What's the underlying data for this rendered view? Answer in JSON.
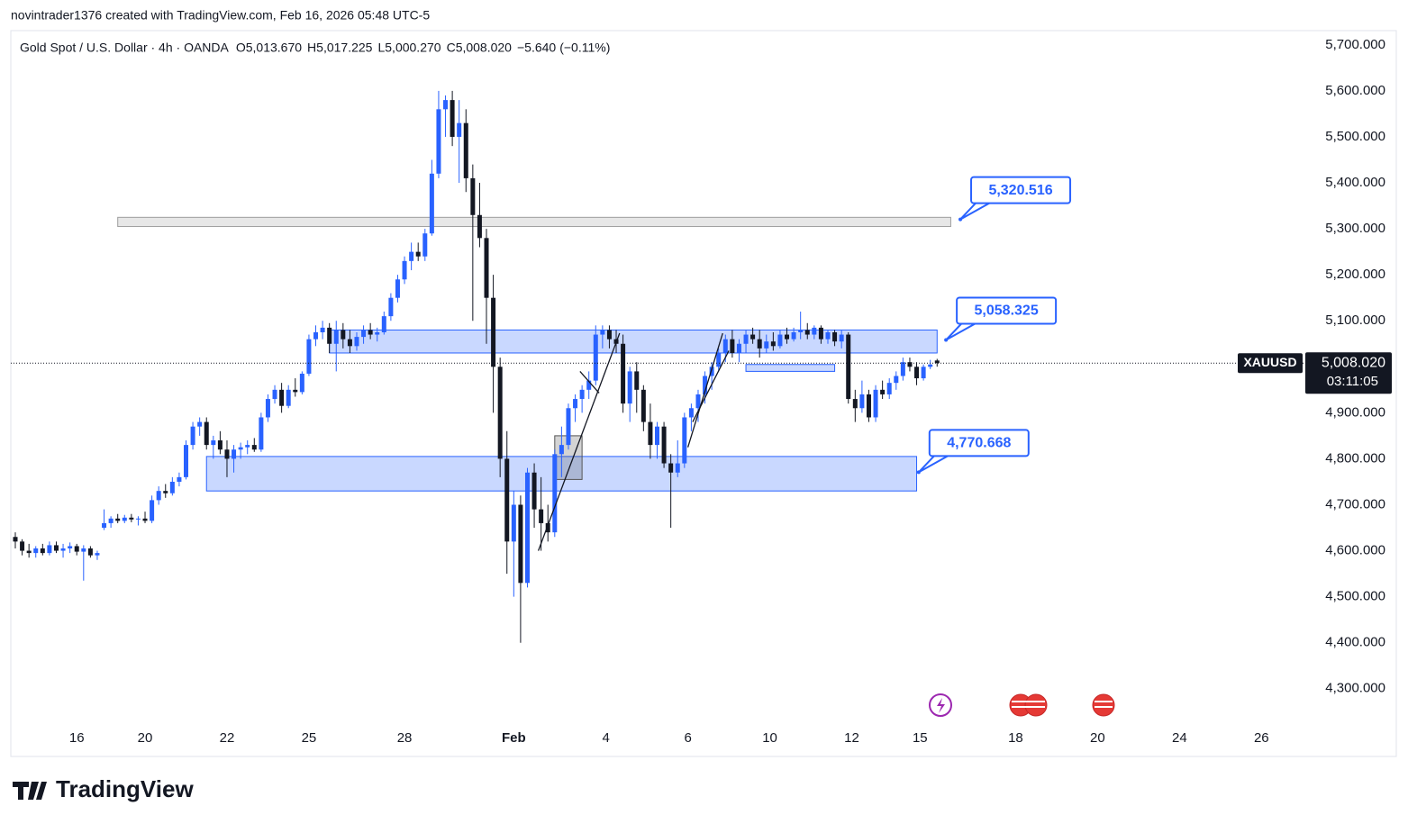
{
  "header": "novintrader1376 created with TradingView.com, Feb 16, 2026 05:48 UTC-5",
  "footer": "TradingView",
  "chart_data": {
    "type": "candlestick",
    "title": "Gold Spot / U.S. Dollar · 4h · OANDA",
    "ohlc": [
      {
        "key": "O",
        "value": 5013.67,
        "label": "5,013.670"
      },
      {
        "key": "H",
        "value": 5017.225,
        "label": "5,017.225"
      },
      {
        "key": "L",
        "value": 5000.27,
        "label": "5,000.270"
      },
      {
        "key": "C",
        "value": 5008.02,
        "label": "5,008.020"
      }
    ],
    "change": {
      "value": -5.64,
      "label": "−5.640"
    },
    "change_pct": {
      "value": -0.11,
      "label": "(−0.11%)"
    },
    "colors": {
      "up": "#2962ff",
      "down": "#131722"
    },
    "xlim": [
      -0.66,
      188
    ],
    "ylim": [
      4231,
      5731
    ],
    "grid": false,
    "xticks": [
      {
        "value": 9,
        "label": "16"
      },
      {
        "value": 19,
        "label": "20"
      },
      {
        "value": 31,
        "label": "22"
      },
      {
        "value": 43,
        "label": "25"
      },
      {
        "value": 57,
        "label": "28"
      },
      {
        "value": 73,
        "label": "Feb"
      },
      {
        "value": 86.5,
        "label": "4"
      },
      {
        "value": 98.5,
        "label": "6"
      },
      {
        "value": 110.5,
        "label": "10"
      },
      {
        "value": 122.5,
        "label": "12"
      },
      {
        "value": 132.5,
        "label": "15"
      },
      {
        "value": 146.5,
        "label": "18"
      },
      {
        "value": 158.5,
        "label": "20"
      },
      {
        "value": 170.5,
        "label": "24"
      },
      {
        "value": 182.5,
        "label": "26"
      }
    ],
    "yticks": [
      {
        "value": 5700,
        "label": "5,700.000"
      },
      {
        "value": 5600,
        "label": "5,600.000"
      },
      {
        "value": 5500,
        "label": "5,500.000"
      },
      {
        "value": 5400,
        "label": "5,400.000"
      },
      {
        "value": 5300,
        "label": "5,300.000"
      },
      {
        "value": 5200,
        "label": "5,200.000"
      },
      {
        "value": 5100,
        "label": "5,100.000"
      },
      {
        "value": 4900,
        "label": "4,900.000"
      },
      {
        "value": 4800,
        "label": "4,800.000"
      },
      {
        "value": 4700,
        "label": "4,700.000"
      },
      {
        "value": 4600,
        "label": "4,600.000"
      },
      {
        "value": 4500,
        "label": "4,500.000"
      },
      {
        "value": 4400,
        "label": "4,400.000"
      },
      {
        "value": 4300,
        "label": "4,300.000"
      }
    ],
    "last_price": {
      "symbol": "XAUUSD",
      "value": 5008.02,
      "label": "5,008.020",
      "countdown": "03:11:05"
    },
    "candles": [
      [
        4630,
        4640,
        4605,
        4620
      ],
      [
        4620,
        4625,
        4590,
        4600
      ],
      [
        4600,
        4615,
        4585,
        4595
      ],
      [
        4595,
        4610,
        4585,
        4605
      ],
      [
        4605,
        4615,
        4590,
        4595
      ],
      [
        4595,
        4620,
        4590,
        4612
      ],
      [
        4612,
        4620,
        4595,
        4600
      ],
      [
        4600,
        4615,
        4585,
        4605
      ],
      [
        4605,
        4618,
        4595,
        4610
      ],
      [
        4610,
        4615,
        4590,
        4598
      ],
      [
        4598,
        4612,
        4535,
        4605
      ],
      [
        4605,
        4610,
        4585,
        4590
      ],
      [
        4590,
        4600,
        4580,
        4595
      ],
      [
        4650,
        4690,
        4645,
        4660
      ],
      [
        4660,
        4675,
        4650,
        4670
      ],
      [
        4670,
        4680,
        4660,
        4665
      ],
      [
        4665,
        4678,
        4660,
        4672
      ],
      [
        4672,
        4680,
        4662,
        4668
      ],
      [
        4668,
        4675,
        4655,
        4670
      ],
      [
        4670,
        4685,
        4660,
        4665
      ],
      [
        4665,
        4720,
        4660,
        4710
      ],
      [
        4710,
        4740,
        4700,
        4730
      ],
      [
        4730,
        4745,
        4715,
        4725
      ],
      [
        4725,
        4760,
        4720,
        4750
      ],
      [
        4750,
        4770,
        4740,
        4760
      ],
      [
        4760,
        4840,
        4755,
        4830
      ],
      [
        4830,
        4880,
        4820,
        4870
      ],
      [
        4870,
        4890,
        4850,
        4880
      ],
      [
        4880,
        4890,
        4820,
        4830
      ],
      [
        4830,
        4850,
        4800,
        4840
      ],
      [
        4840,
        4860,
        4810,
        4820
      ],
      [
        4820,
        4840,
        4760,
        4800
      ],
      [
        4800,
        4830,
        4770,
        4820
      ],
      [
        4820,
        4835,
        4800,
        4825
      ],
      [
        4825,
        4840,
        4810,
        4830
      ],
      [
        4830,
        4845,
        4815,
        4820
      ],
      [
        4820,
        4900,
        4815,
        4890
      ],
      [
        4890,
        4940,
        4880,
        4930
      ],
      [
        4930,
        4960,
        4920,
        4950
      ],
      [
        4950,
        4965,
        4900,
        4915
      ],
      [
        4915,
        4960,
        4910,
        4950
      ],
      [
        4950,
        4975,
        4935,
        4945
      ],
      [
        4945,
        4990,
        4940,
        4985
      ],
      [
        4985,
        5070,
        4980,
        5060
      ],
      [
        5060,
        5090,
        5045,
        5075
      ],
      [
        5075,
        5100,
        5060,
        5085
      ],
      [
        5085,
        5095,
        5030,
        5050
      ],
      [
        5050,
        5100,
        4990,
        5080
      ],
      [
        5080,
        5095,
        5040,
        5060
      ],
      [
        5060,
        5080,
        5030,
        5045
      ],
      [
        5045,
        5075,
        5035,
        5065
      ],
      [
        5065,
        5090,
        5050,
        5080
      ],
      [
        5080,
        5095,
        5060,
        5070
      ],
      [
        5070,
        5085,
        5055,
        5075
      ],
      [
        5075,
        5120,
        5070,
        5110
      ],
      [
        5110,
        5160,
        5100,
        5150
      ],
      [
        5150,
        5200,
        5140,
        5190
      ],
      [
        5190,
        5240,
        5180,
        5230
      ],
      [
        5230,
        5270,
        5210,
        5250
      ],
      [
        5250,
        5270,
        5230,
        5240
      ],
      [
        5240,
        5300,
        5230,
        5290
      ],
      [
        5290,
        5450,
        5285,
        5420
      ],
      [
        5420,
        5600,
        5410,
        5560
      ],
      [
        5560,
        5590,
        5500,
        5580
      ],
      [
        5580,
        5600,
        5480,
        5500
      ],
      [
        5500,
        5580,
        5400,
        5530
      ],
      [
        5530,
        5560,
        5380,
        5410
      ],
      [
        5410,
        5440,
        5100,
        5330
      ],
      [
        5330,
        5400,
        5260,
        5280
      ],
      [
        5280,
        5300,
        5050,
        5150
      ],
      [
        5150,
        5200,
        4900,
        5000
      ],
      [
        5000,
        5020,
        4760,
        4800
      ],
      [
        4800,
        4860,
        4550,
        4620
      ],
      [
        4620,
        4730,
        4500,
        4700
      ],
      [
        4700,
        4720,
        4400,
        4530
      ],
      [
        4530,
        4780,
        4520,
        4770
      ],
      [
        4770,
        4790,
        4650,
        4690
      ],
      [
        4690,
        4760,
        4600,
        4660
      ],
      [
        4660,
        4700,
        4620,
        4640
      ],
      [
        4640,
        4820,
        4630,
        4810
      ],
      [
        4810,
        4870,
        4760,
        4830
      ],
      [
        4830,
        4920,
        4820,
        4910
      ],
      [
        4910,
        4940,
        4880,
        4930
      ],
      [
        4930,
        4960,
        4900,
        4950
      ],
      [
        4950,
        4990,
        4930,
        4970
      ],
      [
        4970,
        5090,
        4960,
        5070
      ],
      [
        5070,
        5090,
        5040,
        5080
      ],
      [
        5080,
        5090,
        5040,
        5060
      ],
      [
        5060,
        5080,
        5030,
        5050
      ],
      [
        5050,
        5070,
        4900,
        4920
      ],
      [
        4920,
        5000,
        4880,
        4990
      ],
      [
        4990,
        5010,
        4900,
        4950
      ],
      [
        4950,
        4960,
        4860,
        4880
      ],
      [
        4880,
        4920,
        4800,
        4830
      ],
      [
        4830,
        4880,
        4800,
        4870
      ],
      [
        4870,
        4880,
        4780,
        4790
      ],
      [
        4790,
        4810,
        4650,
        4770
      ],
      [
        4770,
        4840,
        4760,
        4790
      ],
      [
        4790,
        4900,
        4780,
        4890
      ],
      [
        4890,
        4920,
        4860,
        4910
      ],
      [
        4910,
        4950,
        4880,
        4940
      ],
      [
        4940,
        4990,
        4920,
        4980
      ],
      [
        4980,
        5010,
        4950,
        5000
      ],
      [
        5000,
        5040,
        4990,
        5030
      ],
      [
        5030,
        5070,
        5010,
        5060
      ],
      [
        5060,
        5080,
        5020,
        5030
      ],
      [
        5030,
        5060,
        5010,
        5050
      ],
      [
        5050,
        5080,
        5030,
        5070
      ],
      [
        5070,
        5085,
        5050,
        5060
      ],
      [
        5060,
        5080,
        5020,
        5040
      ],
      [
        5040,
        5070,
        5030,
        5055
      ],
      [
        5055,
        5075,
        5035,
        5045
      ],
      [
        5045,
        5080,
        5040,
        5070
      ],
      [
        5070,
        5085,
        5050,
        5060
      ],
      [
        5060,
        5085,
        5055,
        5075
      ],
      [
        5075,
        5120,
        5060,
        5080
      ],
      [
        5080,
        5095,
        5060,
        5070
      ],
      [
        5070,
        5090,
        5060,
        5085
      ],
      [
        5085,
        5090,
        5050,
        5060
      ],
      [
        5060,
        5080,
        5050,
        5075
      ],
      [
        5075,
        5080,
        5045,
        5055
      ],
      [
        5055,
        5080,
        5040,
        5070
      ],
      [
        5070,
        5075,
        4920,
        4930
      ],
      [
        4930,
        4950,
        4880,
        4910
      ],
      [
        4910,
        4970,
        4900,
        4940
      ],
      [
        4940,
        4950,
        4880,
        4890
      ],
      [
        4890,
        4960,
        4880,
        4950
      ],
      [
        4950,
        4970,
        4930,
        4940
      ],
      [
        4940,
        4975,
        4930,
        4965
      ],
      [
        4965,
        4990,
        4950,
        4980
      ],
      [
        4980,
        5020,
        4970,
        5010
      ],
      [
        5010,
        5020,
        4990,
        5000
      ],
      [
        5000,
        5010,
        4960,
        4975
      ],
      [
        4975,
        5005,
        4970,
        5000
      ],
      [
        5000,
        5015,
        4995,
        5005
      ],
      [
        5013.67,
        5017.225,
        5000.27,
        5008.02
      ]
    ],
    "zones": [
      {
        "x": [
          15,
          137
        ],
        "y": [
          5305,
          5325
        ],
        "color": "#9e9e9e"
      },
      {
        "x": [
          46,
          135
        ],
        "y": [
          5030,
          5080
        ],
        "color": "#2962ff"
      },
      {
        "x": [
          28,
          132
        ],
        "y": [
          4730,
          4805
        ],
        "color": "#2962ff"
      },
      {
        "x": [
          107,
          120
        ],
        "y": [
          4990,
          5005
        ],
        "color": "#2962ff"
      },
      {
        "x": [
          79,
          83
        ],
        "y": [
          4755,
          4850
        ],
        "color": "#555555"
      }
    ],
    "trend_lines": [
      {
        "x": [
          76.6,
          88.5
        ],
        "y": [
          4600,
          5073
        ]
      },
      {
        "x": [
          82.7,
          85.5
        ],
        "y": [
          4990,
          4943
        ]
      },
      {
        "x": [
          98.5,
          103.6
        ],
        "y": [
          4825,
          5073
        ]
      },
      {
        "x": [
          99.2,
          104.5
        ],
        "y": [
          4880,
          5035
        ]
      }
    ],
    "annotations": [
      {
        "x": 138.4,
        "value": 5320.516,
        "label": "5,320.516"
      },
      {
        "x": 136.3,
        "value": 5058.325,
        "label": "5,058.325"
      },
      {
        "x": 132.3,
        "value": 4770.668,
        "label": "4,770.668"
      }
    ]
  }
}
